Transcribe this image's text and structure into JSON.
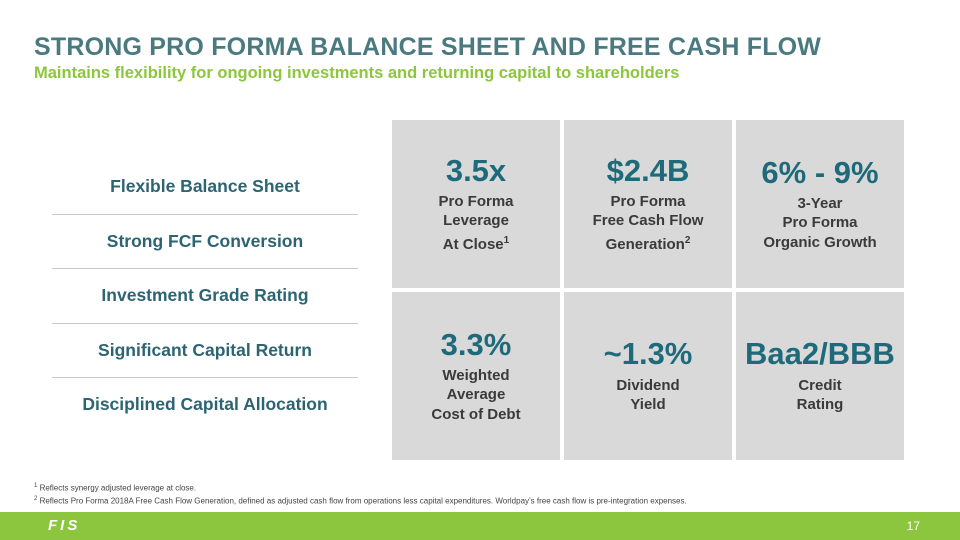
{
  "header": {
    "title": "STRONG PRO FORMA BALANCE SHEET AND FREE CASH FLOW",
    "subtitle": "Maintains flexibility for ongoing investments and returning capital to shareholders"
  },
  "left_list": [
    "Flexible Balance Sheet",
    "Strong FCF Conversion",
    "Investment Grade Rating",
    "Significant Capital Return",
    "Disciplined Capital Allocation"
  ],
  "tiles": [
    {
      "value": "3.5x",
      "lines": [
        "Pro Forma",
        "Leverage",
        "At Close"
      ],
      "sup": "1"
    },
    {
      "value": "$2.4B",
      "lines": [
        "Pro Forma",
        "Free Cash Flow",
        "Generation"
      ],
      "sup": "2"
    },
    {
      "value": "6% - 9%",
      "lines": [
        "3-Year",
        "Pro Forma",
        "Organic Growth"
      ]
    },
    {
      "value": "3.3%",
      "lines": [
        "Weighted",
        "Average",
        "Cost of Debt"
      ]
    },
    {
      "value": "~1.3%",
      "lines": [
        "Dividend",
        "Yield"
      ]
    },
    {
      "value": "Baa2/BBB",
      "lines": [
        "Credit",
        "Rating"
      ]
    }
  ],
  "footnotes": [
    {
      "num": "1",
      "text": "Reflects synergy adjusted leverage at close."
    },
    {
      "num": "2",
      "text": "Reflects Pro Forma 2018A Free Cash Flow Generation, defined as adjusted cash flow from operations less capital expenditures. Worldpay’s free cash flow is pre-integration expenses."
    }
  ],
  "footer": {
    "logo": "FIS",
    "page_number": "17",
    "color": "#8cc63f"
  }
}
